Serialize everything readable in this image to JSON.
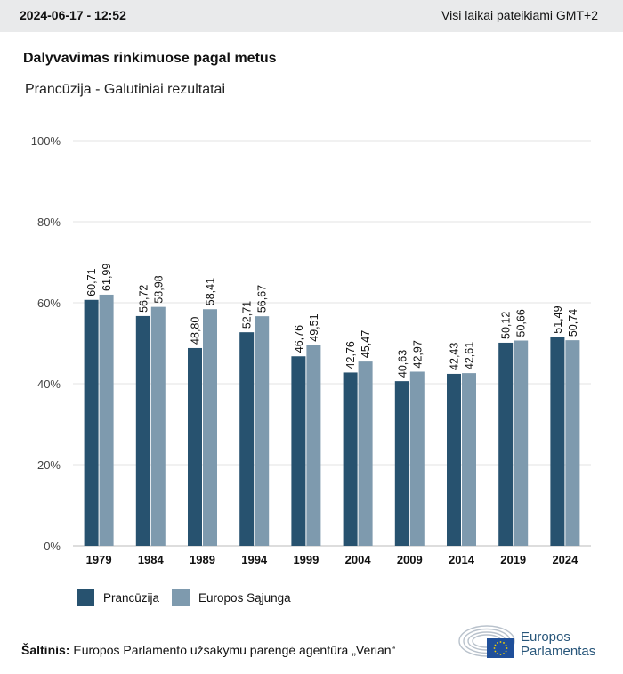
{
  "header": {
    "datetime": "2024-06-17 - 12:52",
    "timezone_note": "Visi laikai pateikiami GMT+2"
  },
  "title": "Dalyvavimas rinkimuose pagal metus",
  "subtitle": "Prancūzija - Galutiniai rezultatai",
  "colors": {
    "france": "#27526f",
    "eu": "#7e9aae",
    "grid": "#e3e3e3",
    "topbar": "#e9eaeb",
    "logo_blue": "#1f4f9a",
    "logo_star": "#f6d200"
  },
  "legend": {
    "france_label": "Prancūzija",
    "eu_label": "Europos Sąjunga"
  },
  "source": {
    "label": "Šaltinis:",
    "text": " Europos Parlamento užsakymu parengė agentūra „Verian“"
  },
  "logo": {
    "line1": "Europos",
    "line2": "Parlamentas"
  },
  "chart_data": {
    "type": "bar",
    "categories": [
      "1979",
      "1984",
      "1989",
      "1994",
      "1999",
      "2004",
      "2009",
      "2014",
      "2019",
      "2024"
    ],
    "series": [
      {
        "name": "Prancūzija",
        "values": [
          60.71,
          56.72,
          48.8,
          52.71,
          46.76,
          42.76,
          40.63,
          42.43,
          50.12,
          51.49
        ],
        "labels": [
          "60,71",
          "56,72",
          "48,80",
          "52,71",
          "46,76",
          "42,76",
          "40,63",
          "42,43",
          "50,12",
          "51,49"
        ]
      },
      {
        "name": "Europos Sąjunga",
        "values": [
          61.99,
          58.98,
          58.41,
          56.67,
          49.51,
          45.47,
          42.97,
          42.61,
          50.66,
          50.74
        ],
        "labels": [
          "61,99",
          "58,98",
          "58,41",
          "56,67",
          "49,51",
          "45,47",
          "42,97",
          "42,61",
          "50,66",
          "50,74"
        ]
      }
    ],
    "ylim": [
      0,
      100
    ],
    "yticks": [
      0,
      20,
      40,
      60,
      80,
      100
    ],
    "ytick_labels": [
      "0%",
      "20%",
      "40%",
      "60%",
      "80%",
      "100%"
    ],
    "grid": true,
    "legend_position": "bottom-left"
  }
}
